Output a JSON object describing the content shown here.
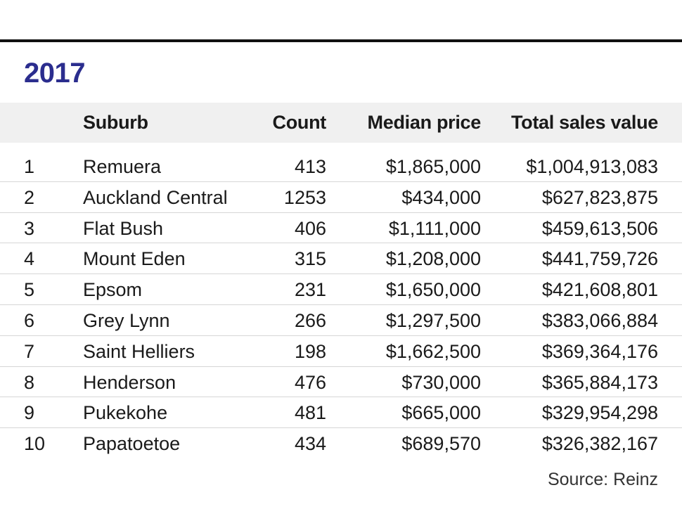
{
  "chart_data": {
    "type": "table",
    "title": "2017",
    "columns": [
      "",
      "Suburb",
      "Count",
      "Median price",
      "Total sales value"
    ],
    "rows": [
      {
        "rank": "1",
        "suburb": "Remuera",
        "count": "413",
        "median": "$1,865,000",
        "total": "$1,004,913,083"
      },
      {
        "rank": "2",
        "suburb": "Auckland Central",
        "count": "1253",
        "median": "$434,000",
        "total": "$627,823,875"
      },
      {
        "rank": "3",
        "suburb": "Flat Bush",
        "count": "406",
        "median": "$1,111,000",
        "total": "$459,613,506"
      },
      {
        "rank": "4",
        "suburb": "Mount Eden",
        "count": "315",
        "median": "$1,208,000",
        "total": "$441,759,726"
      },
      {
        "rank": "5",
        "suburb": "Epsom",
        "count": "231",
        "median": "$1,650,000",
        "total": "$421,608,801"
      },
      {
        "rank": "6",
        "suburb": "Grey Lynn",
        "count": "266",
        "median": "$1,297,500",
        "total": "$383,066,884"
      },
      {
        "rank": "7",
        "suburb": "Saint Helliers",
        "count": "198",
        "median": "$1,662,500",
        "total": "$369,364,176"
      },
      {
        "rank": "8",
        "suburb": "Henderson",
        "count": "476",
        "median": "$730,000",
        "total": "$365,884,173"
      },
      {
        "rank": "9",
        "suburb": "Pukekohe",
        "count": "481",
        "median": "$665,000",
        "total": "$329,954,298"
      },
      {
        "rank": "10",
        "suburb": "Papatoetoe",
        "count": "434",
        "median": "$689,570",
        "total": "$326,382,167"
      }
    ],
    "source": "Source: Reinz"
  },
  "colors": {
    "title": "#2b2d8e",
    "header_band": "#f0f0f0",
    "rule": "#111111",
    "divider": "#d6d6d6"
  }
}
